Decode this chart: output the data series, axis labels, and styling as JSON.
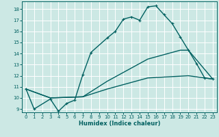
{
  "xlabel": "Humidex (Indice chaleur)",
  "bg_color": "#cce8e4",
  "line_color": "#006060",
  "grid_color": "#ffffff",
  "xlim": [
    -0.5,
    23.5
  ],
  "ylim": [
    8.7,
    18.7
  ],
  "yticks": [
    9,
    10,
    11,
    12,
    13,
    14,
    15,
    16,
    17,
    18
  ],
  "xticks": [
    0,
    1,
    2,
    3,
    4,
    5,
    6,
    7,
    8,
    9,
    10,
    11,
    12,
    13,
    14,
    15,
    16,
    17,
    18,
    19,
    20,
    21,
    22,
    23
  ],
  "line1_x": [
    0,
    1,
    3,
    4,
    5,
    6,
    7,
    8,
    10,
    11,
    12,
    13,
    14,
    15,
    16,
    17,
    18,
    19,
    20,
    21,
    22,
    23
  ],
  "line1_y": [
    10.8,
    9.0,
    9.9,
    8.8,
    9.5,
    9.8,
    12.1,
    14.1,
    15.4,
    16.0,
    17.1,
    17.3,
    17.0,
    18.2,
    18.3,
    17.5,
    16.7,
    15.5,
    14.3,
    13.1,
    11.8,
    11.7
  ],
  "line2_x": [
    0,
    3,
    7,
    10,
    15,
    19,
    20,
    23
  ],
  "line2_y": [
    10.8,
    10.0,
    10.1,
    11.5,
    13.5,
    14.3,
    14.3,
    11.7
  ],
  "line3_x": [
    0,
    3,
    7,
    10,
    15,
    20,
    23
  ],
  "line3_y": [
    10.8,
    10.0,
    10.1,
    10.8,
    11.8,
    12.0,
    11.7
  ],
  "marker_size": 3,
  "linewidth": 1.0,
  "tick_fontsize": 5,
  "xlabel_fontsize": 6
}
